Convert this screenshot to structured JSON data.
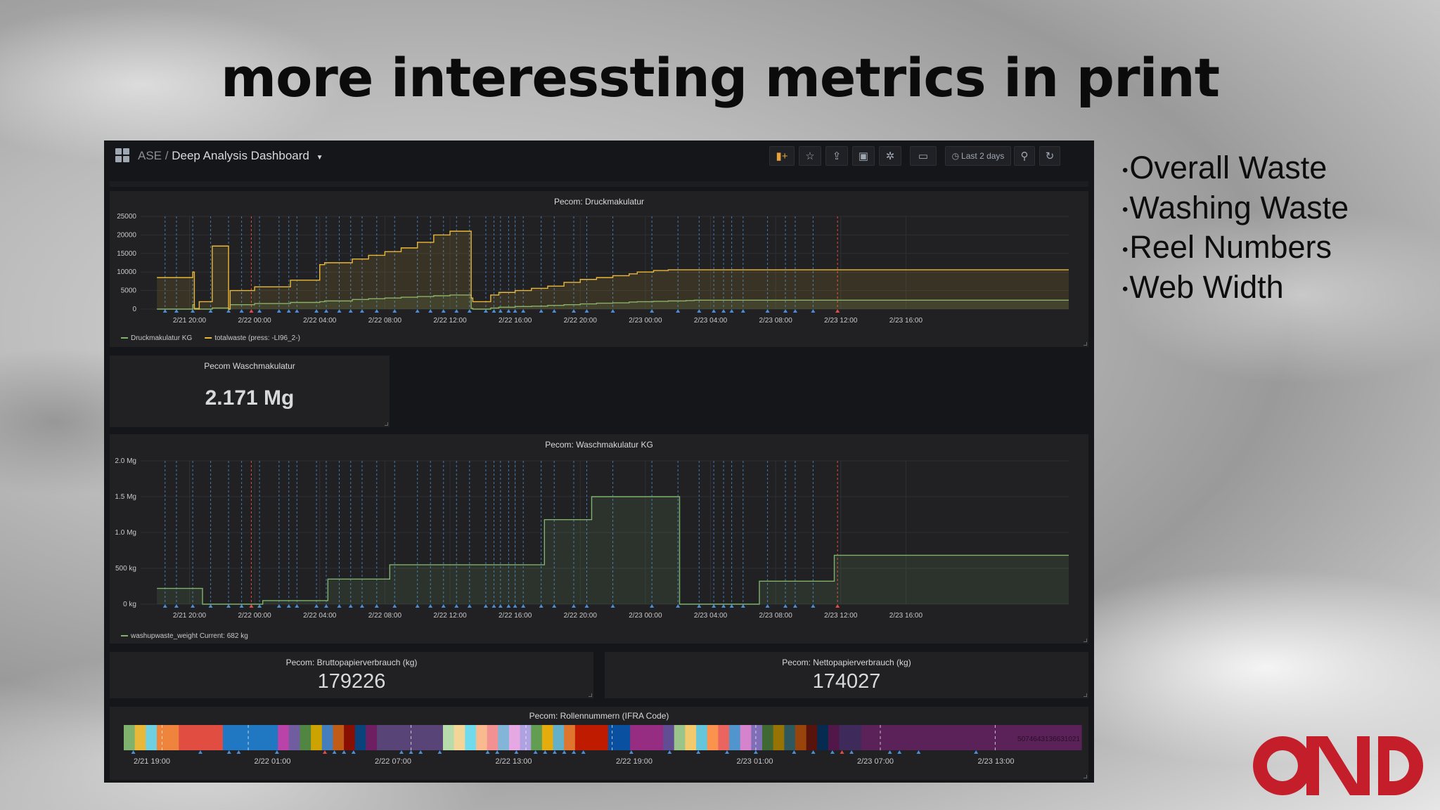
{
  "slide": {
    "title": "more interessting metrics in print",
    "bullets": [
      "Overall Waste",
      "Washing Waste",
      "Reel Numbers",
      "Web Width"
    ]
  },
  "dashboard": {
    "breadcrumb_folder": "ASE",
    "breadcrumb_sep": "/",
    "breadcrumb_title": "Deep Analysis Dashboard",
    "time_range": "Last 2 days"
  },
  "icons": [
    "dashboard-grid-icon",
    "add-panel-icon",
    "star-icon",
    "share-icon",
    "save-icon",
    "gear-icon",
    "monitor-icon",
    "clock-icon",
    "zoom-out-icon",
    "refresh-icon"
  ],
  "colors": {
    "dashboard_bg": "#141619",
    "panel_bg": "#212124",
    "series_green": "#7eb26d",
    "series_yellow": "#eab839",
    "annotation_blue": "#4a8fd6",
    "annotation_red": "#e24d42",
    "logo_red": "#c41e2b"
  },
  "panels": {
    "druck": {
      "title": "Pecom: Druckmakulatur"
    },
    "wasch_stat": {
      "title": "Pecom Waschmakulatur",
      "value": "2.171 Mg"
    },
    "wasch_graph": {
      "title": "Pecom: Waschmakulatur KG"
    },
    "brutto": {
      "title": "Pecom: Bruttopapierverbrauch (kg)",
      "value": "179226"
    },
    "netto": {
      "title": "Pecom: Nettopapierverbrauch (kg)",
      "value": "174027"
    },
    "rollen": {
      "title": "Pecom: Rollennummern (IFRA Code)"
    }
  },
  "chart_data": [
    {
      "type": "area",
      "title": "Pecom: Druckmakulatur",
      "x_ticks": [
        "2/21 20:00",
        "2/22 00:00",
        "2/22 04:00",
        "2/22 08:00",
        "2/22 12:00",
        "2/22 16:00",
        "2/22 20:00",
        "2/23 00:00",
        "2/23 04:00",
        "2/23 08:00",
        "2/23 12:00",
        "2/23 16:00"
      ],
      "y_ticks": [
        "0",
        "5000",
        "10000",
        "15000",
        "20000",
        "25000"
      ],
      "ylim": [
        0,
        25000
      ],
      "x_hours_from_2_21_18_00": [
        0,
        2.2,
        2.3,
        2.6,
        3.4,
        4.4,
        4.5,
        6.0,
        8.2,
        10.0,
        10.3,
        12.0,
        13.0,
        14.0,
        15.0,
        16.0,
        17.0,
        18.0,
        19.3,
        19.4,
        20.5,
        21.0,
        22.0,
        23.0,
        24.0,
        25.0,
        26.0,
        27.0,
        28.0,
        29.0,
        29.5,
        30.5,
        31.4,
        32.5,
        33.0,
        34.0,
        35.0,
        36.0,
        37.0,
        38.0,
        40.0,
        48.0,
        56.0
      ],
      "series": [
        {
          "name": "Druckmakulatur KG",
          "color": "#7eb26d",
          "values": [
            0,
            1200,
            200,
            0,
            300,
            0,
            1200,
            1500,
            1800,
            2000,
            2200,
            2600,
            2800,
            3000,
            3200,
            3400,
            3600,
            3800,
            200,
            0,
            300,
            500,
            700,
            800,
            1000,
            1200,
            1400,
            1600,
            1700,
            1900,
            2000,
            2100,
            2200,
            2300,
            2400,
            2400,
            2400,
            2400,
            2400,
            2400,
            2400,
            2400,
            2400
          ]
        },
        {
          "name": "totalwaste (press: -LI96_2-)",
          "color": "#eab839",
          "values": [
            8500,
            10000,
            0,
            2000,
            17000,
            0,
            5000,
            6000,
            7800,
            12000,
            12500,
            13500,
            14500,
            15500,
            16500,
            18000,
            20000,
            21000,
            3000,
            2000,
            3800,
            4500,
            5000,
            5600,
            6200,
            7200,
            8000,
            8500,
            9000,
            9500,
            10000,
            10400,
            10600,
            10600,
            10600,
            10600,
            10600,
            10600,
            10600,
            10600,
            10600,
            10600,
            10600
          ]
        }
      ]
    },
    {
      "type": "area",
      "title": "Pecom: Waschmakulatur KG",
      "x_ticks": [
        "2/21 20:00",
        "2/22 00:00",
        "2/22 04:00",
        "2/22 08:00",
        "2/22 12:00",
        "2/22 16:00",
        "2/22 20:00",
        "2/23 00:00",
        "2/23 04:00",
        "2/23 08:00",
        "2/23 12:00",
        "2/23 16:00"
      ],
      "y_ticks": [
        "0 kg",
        "500 kg",
        "1.0 Mg",
        "1.5 Mg",
        "2.0 Mg"
      ],
      "ylim": [
        0,
        2000
      ],
      "x_hours_from_2_21_18_00": [
        0,
        2.8,
        6.5,
        10.5,
        14.3,
        20.6,
        23.8,
        26.7,
        32.1,
        37.0,
        41.6,
        56.0
      ],
      "series": [
        {
          "name": "washupwaste_weight",
          "legend_current": "Current: 682 kg",
          "color": "#7eb26d",
          "values": [
            220,
            0,
            50,
            350,
            550,
            550,
            1180,
            1500,
            0,
            320,
            682,
            682
          ]
        }
      ]
    }
  ],
  "rollen_ticks": [
    "2/21 19:00",
    "2/22 01:00",
    "2/22 07:00",
    "2/22 13:00",
    "2/22 19:00",
    "2/23 01:00",
    "2/23 07:00",
    "2/23 13:00"
  ],
  "rollen_code": "5074643136631021",
  "rollen_segments": [
    [
      "#7eb26d",
      1
    ],
    [
      "#eab839",
      1
    ],
    [
      "#6ed0e0",
      1
    ],
    [
      "#ef843c",
      2
    ],
    [
      "#e24d42",
      4
    ],
    [
      "#1f78c1",
      5
    ],
    [
      "#ba43a9",
      1
    ],
    [
      "#705da0",
      1
    ],
    [
      "#508642",
      1
    ],
    [
      "#cca300",
      1
    ],
    [
      "#447ebc",
      1
    ],
    [
      "#c15c17",
      1
    ],
    [
      "#890f02",
      1
    ],
    [
      "#0a437c",
      1
    ],
    [
      "#6d1f62",
      1
    ],
    [
      "#584477",
      6
    ],
    [
      "#b7dbab",
      1
    ],
    [
      "#f4d598",
      1
    ],
    [
      "#70dbed",
      1
    ],
    [
      "#f9ba8f",
      1
    ],
    [
      "#f29191",
      1
    ],
    [
      "#82b5d8",
      1
    ],
    [
      "#e5a8e2",
      1
    ],
    [
      "#aea2e0",
      1
    ],
    [
      "#629e51",
      1
    ],
    [
      "#e5ac0e",
      1
    ],
    [
      "#64b0c8",
      1
    ],
    [
      "#e0752d",
      1
    ],
    [
      "#bf1b00",
      3
    ],
    [
      "#0a50a1",
      2
    ],
    [
      "#962d82",
      3
    ],
    [
      "#614d93",
      1
    ],
    [
      "#9ac48a",
      1
    ],
    [
      "#f2c96d",
      1
    ],
    [
      "#65c5db",
      1
    ],
    [
      "#f9934e",
      1
    ],
    [
      "#ea6460",
      1
    ],
    [
      "#5195ce",
      1
    ],
    [
      "#d683ce",
      1
    ],
    [
      "#806eb7",
      1
    ],
    [
      "#3f6833",
      1
    ],
    [
      "#967302",
      1
    ],
    [
      "#2f575e",
      1
    ],
    [
      "#99440a",
      1
    ],
    [
      "#58140c",
      1
    ],
    [
      "#052b51",
      1
    ],
    [
      "#511749",
      1
    ],
    [
      "#3f2b5b",
      2
    ],
    [
      "#5a2258",
      20
    ]
  ]
}
